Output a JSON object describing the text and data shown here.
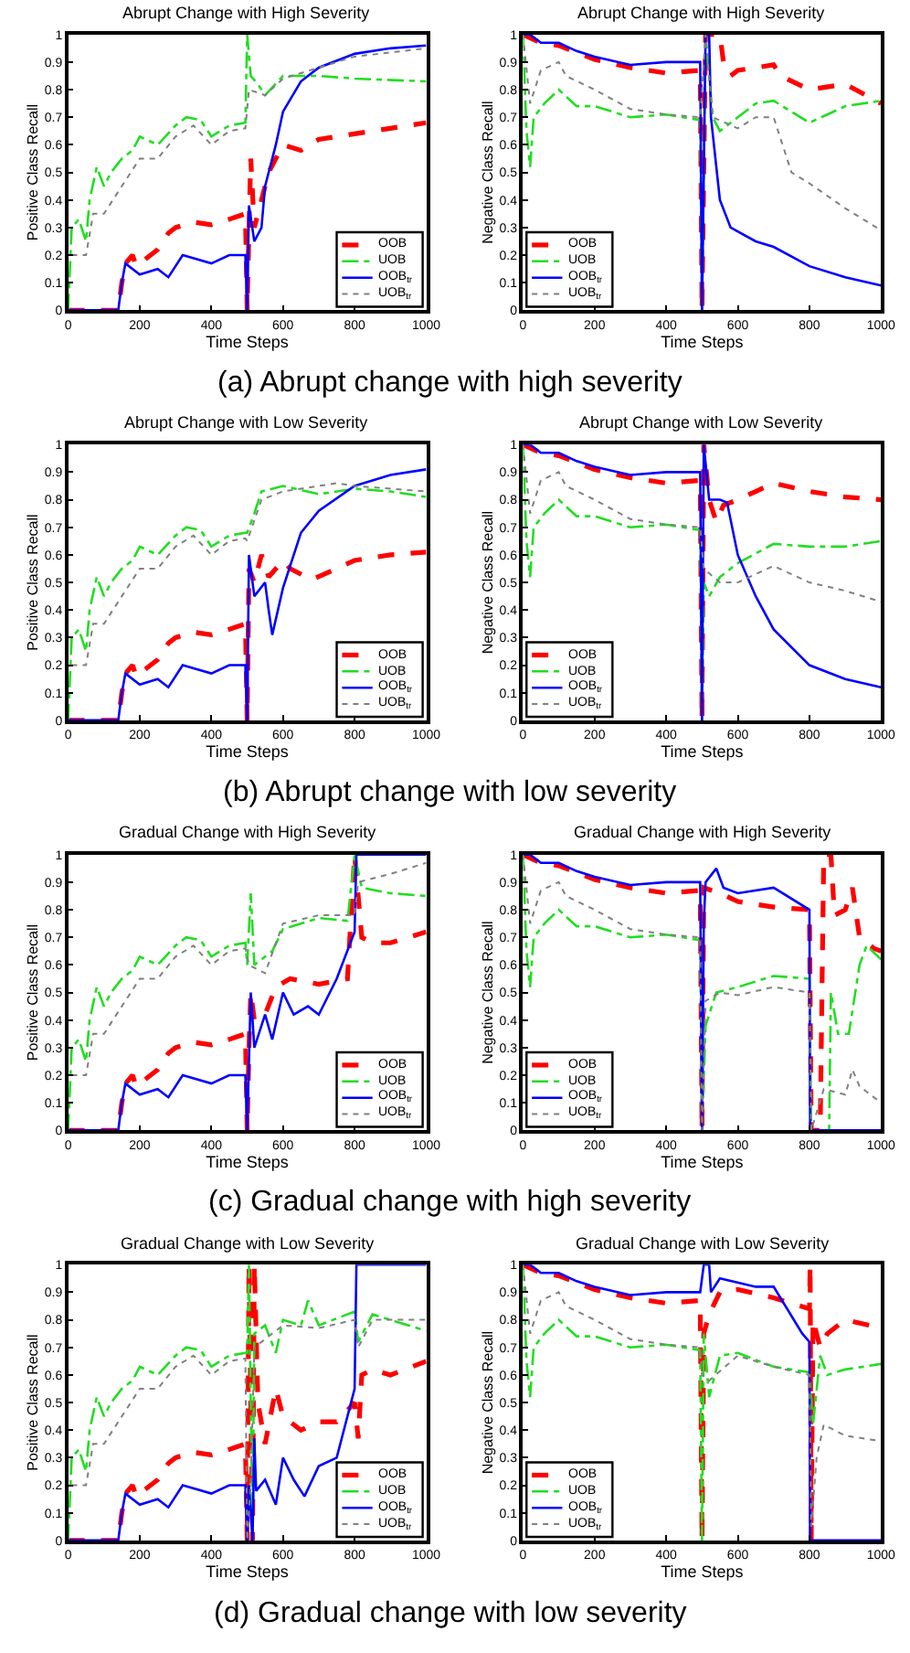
{
  "chart_data": [
    {
      "type": "line",
      "title": "Abrupt Change with High Severity",
      "xlabel": "Time Steps",
      "ylabel": "Positive Class Recall",
      "xlim": [
        0,
        1000
      ],
      "ylim": [
        0,
        1
      ],
      "xticks": [
        0,
        200,
        400,
        600,
        800,
        1000
      ],
      "yticks": [
        0,
        0.1,
        0.2,
        0.3,
        0.4,
        0.5,
        0.6,
        0.7,
        0.8,
        0.9,
        1
      ],
      "grid": false,
      "legend": "bottom right",
      "annotations": [
        "(a) Abrupt change with high severity"
      ],
      "series": [
        {
          "name": "OOB",
          "color": "#ff0000",
          "line_style": "dashed",
          "x": [
            0,
            140,
            150,
            160,
            180,
            190,
            200,
            250,
            280,
            300,
            350,
            400,
            450,
            495,
            500,
            505,
            510,
            520,
            540,
            560,
            600,
            650,
            700,
            800,
            900,
            1000
          ],
          "values": [
            0,
            0,
            0.1,
            0.17,
            0.2,
            0.16,
            0.17,
            0.22,
            0.28,
            0.3,
            0.32,
            0.31,
            0.33,
            0.35,
            0,
            0.3,
            0.55,
            0.3,
            0.4,
            0.5,
            0.6,
            0.58,
            0.62,
            0.64,
            0.66,
            0.68
          ]
        },
        {
          "name": "UOB",
          "color": "#22dd22",
          "line_style": "dashdot",
          "x": [
            0,
            10,
            30,
            50,
            60,
            80,
            100,
            120,
            150,
            180,
            200,
            250,
            300,
            330,
            370,
            400,
            450,
            495,
            500,
            510,
            530,
            550,
            600,
            700,
            800,
            1000
          ],
          "values": [
            0,
            0.3,
            0.33,
            0.25,
            0.4,
            0.52,
            0.45,
            0.5,
            0.55,
            0.58,
            0.63,
            0.6,
            0.67,
            0.7,
            0.69,
            0.63,
            0.67,
            0.68,
            1,
            0.85,
            0.82,
            0.78,
            0.85,
            0.85,
            0.84,
            0.83
          ]
        },
        {
          "name": "OOB$_{tr}$",
          "color": "#0000ff",
          "line_style": "solid",
          "x": [
            0,
            140,
            150,
            160,
            200,
            250,
            280,
            320,
            400,
            450,
            495,
            500,
            505,
            520,
            540,
            550,
            580,
            600,
            650,
            700,
            800,
            900,
            1000
          ],
          "values": [
            0,
            0,
            0.1,
            0.17,
            0.13,
            0.15,
            0.12,
            0.2,
            0.17,
            0.2,
            0.2,
            0,
            0.38,
            0.25,
            0.3,
            0.45,
            0.6,
            0.72,
            0.83,
            0.88,
            0.93,
            0.95,
            0.96
          ]
        },
        {
          "name": "UOB$_{tr}$",
          "color": "#808080",
          "line_style": "dotted",
          "x": [
            10,
            50,
            70,
            100,
            150,
            200,
            250,
            300,
            350,
            400,
            450,
            495,
            505,
            550,
            600,
            700,
            800,
            1000
          ],
          "values": [
            0.2,
            0.2,
            0.35,
            0.35,
            0.45,
            0.55,
            0.55,
            0.63,
            0.67,
            0.6,
            0.65,
            0.66,
            0.8,
            0.78,
            0.84,
            0.88,
            0.92,
            0.95
          ]
        }
      ]
    },
    {
      "type": "line",
      "title": "Abrupt Change with High Severity",
      "xlabel": "Time Steps",
      "ylabel": "Negative Class Recall",
      "xlim": [
        0,
        1000
      ],
      "ylim": [
        0,
        1
      ],
      "xticks": [
        0,
        200,
        400,
        600,
        800,
        1000
      ],
      "yticks": [
        0,
        0.1,
        0.2,
        0.3,
        0.4,
        0.5,
        0.6,
        0.7,
        0.8,
        0.9,
        1
      ],
      "grid": false,
      "legend": "bottom left",
      "series": [
        {
          "name": "OOB",
          "color": "#ff0000",
          "line_style": "dashed",
          "x": [
            0,
            50,
            100,
            200,
            300,
            400,
            495,
            500,
            510,
            550,
            560,
            580,
            600,
            700,
            720,
            800,
            900,
            1000
          ],
          "values": [
            1,
            0.97,
            0.96,
            0.91,
            0.88,
            0.86,
            0.87,
            0,
            1,
            1,
            0.9,
            0.85,
            0.87,
            0.89,
            0.85,
            0.8,
            0.82,
            0.75
          ]
        },
        {
          "name": "UOB",
          "color": "#22dd22",
          "line_style": "dashdot",
          "x": [
            0,
            10,
            20,
            30,
            60,
            100,
            150,
            200,
            300,
            400,
            495,
            500,
            510,
            530,
            550,
            600,
            650,
            700,
            800,
            900,
            1000
          ],
          "values": [
            1,
            0.65,
            0.52,
            0.7,
            0.75,
            0.8,
            0.74,
            0.74,
            0.7,
            0.71,
            0.69,
            0,
            1,
            0.7,
            0.65,
            0.7,
            0.75,
            0.76,
            0.68,
            0.74,
            0.76
          ]
        },
        {
          "name": "OOB$_{tr}$",
          "color": "#0000ff",
          "line_style": "solid",
          "x": [
            0,
            20,
            50,
            100,
            150,
            200,
            300,
            400,
            495,
            500,
            510,
            520,
            525,
            550,
            580,
            650,
            700,
            800,
            900,
            1000
          ],
          "values": [
            1,
            1,
            0.97,
            0.97,
            0.94,
            0.92,
            0.89,
            0.9,
            0.9,
            0,
            1,
            1,
            0.7,
            0.4,
            0.3,
            0.25,
            0.23,
            0.16,
            0.12,
            0.09
          ]
        },
        {
          "name": "UOB$_{tr}$",
          "color": "#808080",
          "line_style": "dotted",
          "x": [
            0,
            20,
            50,
            100,
            120,
            200,
            300,
            400,
            495,
            510,
            530,
            600,
            650,
            700,
            750,
            800,
            900,
            1000
          ],
          "values": [
            1,
            0.75,
            0.87,
            0.9,
            0.85,
            0.8,
            0.73,
            0.71,
            0.7,
            1,
            0.7,
            0.66,
            0.7,
            0.7,
            0.5,
            0.46,
            0.37,
            0.29
          ]
        }
      ]
    },
    {
      "type": "line",
      "title": "Abrupt Change with Low Severity",
      "xlabel": "Time Steps",
      "ylabel": "Positive Class Recall",
      "xlim": [
        0,
        1000
      ],
      "ylim": [
        0,
        1
      ],
      "xticks": [
        0,
        200,
        400,
        600,
        800,
        1000
      ],
      "yticks": [
        0,
        0.1,
        0.2,
        0.3,
        0.4,
        0.5,
        0.6,
        0.7,
        0.8,
        0.9,
        1
      ],
      "grid": false,
      "legend": "bottom right",
      "annotations": [
        "(b) Abrupt change with low severity"
      ],
      "series": [
        {
          "name": "OOB",
          "color": "#ff0000",
          "line_style": "dashed",
          "x": [
            0,
            140,
            150,
            160,
            180,
            190,
            200,
            250,
            280,
            300,
            350,
            400,
            450,
            495,
            500,
            505,
            520,
            540,
            560,
            600,
            620,
            680,
            750,
            800,
            900,
            1000
          ],
          "values": [
            0,
            0,
            0.1,
            0.17,
            0.2,
            0.16,
            0.17,
            0.22,
            0.28,
            0.3,
            0.32,
            0.31,
            0.33,
            0.35,
            0,
            0.55,
            0.5,
            0.6,
            0.52,
            0.58,
            0.55,
            0.51,
            0.55,
            0.58,
            0.6,
            0.61
          ]
        },
        {
          "name": "UOB",
          "color": "#22dd22",
          "line_style": "dashdot",
          "x": [
            0,
            10,
            30,
            50,
            60,
            80,
            100,
            120,
            150,
            180,
            200,
            250,
            300,
            330,
            370,
            400,
            450,
            495,
            500,
            520,
            540,
            600,
            700,
            800,
            900,
            1000
          ],
          "values": [
            0,
            0.3,
            0.33,
            0.25,
            0.4,
            0.52,
            0.45,
            0.5,
            0.55,
            0.58,
            0.63,
            0.6,
            0.67,
            0.7,
            0.69,
            0.63,
            0.67,
            0.68,
            0.68,
            0.75,
            0.83,
            0.85,
            0.82,
            0.84,
            0.83,
            0.81
          ]
        },
        {
          "name": "OOB$_{tr}$",
          "color": "#0000ff",
          "line_style": "solid",
          "x": [
            0,
            140,
            150,
            160,
            200,
            250,
            280,
            320,
            400,
            450,
            495,
            500,
            505,
            520,
            550,
            560,
            570,
            600,
            650,
            700,
            800,
            900,
            1000
          ],
          "values": [
            0,
            0,
            0.1,
            0.17,
            0.13,
            0.15,
            0.12,
            0.2,
            0.17,
            0.2,
            0.2,
            0,
            0.6,
            0.45,
            0.5,
            0.4,
            0.31,
            0.48,
            0.68,
            0.76,
            0.85,
            0.89,
            0.91
          ]
        },
        {
          "name": "UOB$_{tr}$",
          "color": "#808080",
          "line_style": "dotted",
          "x": [
            10,
            50,
            70,
            100,
            150,
            200,
            250,
            300,
            350,
            400,
            450,
            495,
            500,
            540,
            600,
            750,
            800,
            1000
          ],
          "values": [
            0.2,
            0.2,
            0.35,
            0.35,
            0.45,
            0.55,
            0.55,
            0.63,
            0.67,
            0.6,
            0.65,
            0.66,
            0.65,
            0.8,
            0.83,
            0.86,
            0.85,
            0.83
          ]
        }
      ]
    },
    {
      "type": "line",
      "title": "Abrupt Change with Low Severity",
      "xlabel": "Time Steps",
      "ylabel": "Negative Class Recall",
      "xlim": [
        0,
        1000
      ],
      "ylim": [
        0,
        1
      ],
      "xticks": [
        0,
        200,
        400,
        600,
        800,
        1000
      ],
      "yticks": [
        0,
        0.1,
        0.2,
        0.3,
        0.4,
        0.5,
        0.6,
        0.7,
        0.8,
        0.9,
        1
      ],
      "grid": false,
      "legend": "bottom left",
      "series": [
        {
          "name": "OOB",
          "color": "#ff0000",
          "line_style": "dashed",
          "x": [
            0,
            50,
            100,
            200,
            300,
            400,
            495,
            500,
            505,
            520,
            540,
            560,
            600,
            650,
            700,
            800,
            900,
            1000
          ],
          "values": [
            1,
            0.97,
            0.96,
            0.91,
            0.88,
            0.86,
            0.87,
            0,
            1,
            0.8,
            0.72,
            0.78,
            0.8,
            0.83,
            0.86,
            0.83,
            0.81,
            0.8
          ]
        },
        {
          "name": "UOB",
          "color": "#22dd22",
          "line_style": "dashdot",
          "x": [
            0,
            10,
            20,
            30,
            60,
            100,
            150,
            200,
            300,
            400,
            495,
            500,
            505,
            520,
            550,
            600,
            700,
            800,
            900,
            1000
          ],
          "values": [
            1,
            0.65,
            0.52,
            0.7,
            0.75,
            0.8,
            0.74,
            0.74,
            0.7,
            0.71,
            0.69,
            0,
            0.5,
            0.45,
            0.52,
            0.57,
            0.64,
            0.63,
            0.63,
            0.65
          ]
        },
        {
          "name": "OOB$_{tr}$",
          "color": "#0000ff",
          "line_style": "solid",
          "x": [
            0,
            20,
            50,
            100,
            150,
            200,
            300,
            400,
            495,
            500,
            505,
            520,
            550,
            570,
            600,
            650,
            700,
            800,
            900,
            1000
          ],
          "values": [
            1,
            1,
            0.97,
            0.97,
            0.94,
            0.92,
            0.89,
            0.9,
            0.9,
            0,
            1,
            0.8,
            0.8,
            0.79,
            0.6,
            0.45,
            0.33,
            0.2,
            0.15,
            0.12
          ]
        },
        {
          "name": "UOB$_{tr}$",
          "color": "#808080",
          "line_style": "dotted",
          "x": [
            0,
            20,
            50,
            100,
            120,
            200,
            300,
            400,
            495,
            505,
            550,
            600,
            700,
            800,
            900,
            1000
          ],
          "values": [
            1,
            0.75,
            0.87,
            0.9,
            0.85,
            0.8,
            0.73,
            0.71,
            0.7,
            0.55,
            0.5,
            0.5,
            0.56,
            0.5,
            0.47,
            0.43
          ]
        }
      ]
    },
    {
      "type": "line",
      "title": "Gradual Change with High Severity",
      "xlabel": "Time Steps",
      "ylabel": "Positive Class Recall",
      "xlim": [
        0,
        1000
      ],
      "ylim": [
        0,
        1
      ],
      "xticks": [
        0,
        200,
        400,
        600,
        800,
        1000
      ],
      "yticks": [
        0,
        0.1,
        0.2,
        0.3,
        0.4,
        0.5,
        0.6,
        0.7,
        0.8,
        0.9,
        1
      ],
      "grid": false,
      "legend": "bottom right",
      "annotations": [
        "(c) Gradual change with high severity"
      ],
      "series": [
        {
          "name": "OOB",
          "color": "#ff0000",
          "line_style": "dashed",
          "x": [
            0,
            140,
            150,
            160,
            180,
            190,
            200,
            250,
            280,
            300,
            350,
            400,
            450,
            495,
            500,
            505,
            510,
            520,
            550,
            580,
            620,
            700,
            780,
            800,
            820,
            850,
            900,
            1000
          ],
          "values": [
            0,
            0,
            0.1,
            0.17,
            0.2,
            0.16,
            0.17,
            0.22,
            0.28,
            0.3,
            0.32,
            0.31,
            0.33,
            0.35,
            0,
            0.3,
            0.5,
            0.4,
            0.42,
            0.52,
            0.55,
            0.53,
            0.55,
            1,
            0.7,
            0.68,
            0.68,
            0.72
          ]
        },
        {
          "name": "UOB",
          "color": "#22dd22",
          "line_style": "dashdot",
          "x": [
            0,
            10,
            30,
            50,
            60,
            80,
            100,
            120,
            150,
            180,
            200,
            250,
            300,
            330,
            370,
            400,
            450,
            495,
            500,
            510,
            520,
            570,
            600,
            700,
            780,
            800,
            820,
            900,
            1000
          ],
          "values": [
            0,
            0.3,
            0.33,
            0.25,
            0.4,
            0.52,
            0.45,
            0.5,
            0.55,
            0.58,
            0.63,
            0.6,
            0.67,
            0.7,
            0.69,
            0.63,
            0.67,
            0.68,
            0.6,
            0.86,
            0.6,
            0.65,
            0.73,
            0.77,
            0.76,
            1,
            0.88,
            0.86,
            0.85
          ]
        },
        {
          "name": "OOB$_{tr}$",
          "color": "#0000ff",
          "line_style": "solid",
          "x": [
            0,
            140,
            150,
            160,
            200,
            250,
            280,
            320,
            400,
            450,
            495,
            500,
            510,
            520,
            550,
            570,
            600,
            630,
            670,
            700,
            750,
            800,
            805,
            1000
          ],
          "values": [
            0,
            0,
            0.1,
            0.17,
            0.13,
            0.15,
            0.12,
            0.2,
            0.17,
            0.2,
            0.2,
            0,
            0.5,
            0.3,
            0.42,
            0.33,
            0.5,
            0.42,
            0.45,
            0.42,
            0.55,
            0.72,
            1,
            1
          ]
        },
        {
          "name": "UOB$_{tr}$",
          "color": "#808080",
          "line_style": "dotted",
          "x": [
            10,
            50,
            70,
            100,
            150,
            200,
            250,
            300,
            350,
            400,
            450,
            495,
            505,
            550,
            600,
            700,
            800,
            810,
            900,
            1000
          ],
          "values": [
            0.2,
            0.2,
            0.35,
            0.35,
            0.45,
            0.55,
            0.55,
            0.63,
            0.67,
            0.6,
            0.65,
            0.66,
            0.6,
            0.57,
            0.75,
            0.78,
            0.78,
            0.9,
            0.93,
            0.97
          ]
        }
      ]
    },
    {
      "type": "line",
      "title": "Gradual Change with High Severity",
      "xlabel": "Time Steps",
      "ylabel": "Negative Class Recall",
      "xlim": [
        0,
        1000
      ],
      "ylim": [
        0,
        1
      ],
      "xticks": [
        0,
        200,
        400,
        600,
        800,
        1000
      ],
      "yticks": [
        0,
        0.1,
        0.2,
        0.3,
        0.4,
        0.5,
        0.6,
        0.7,
        0.8,
        0.9,
        1
      ],
      "grid": false,
      "legend": "bottom left",
      "series": [
        {
          "name": "OOB",
          "color": "#ff0000",
          "line_style": "dashed",
          "x": [
            0,
            50,
            100,
            200,
            300,
            400,
            495,
            500,
            505,
            550,
            600,
            700,
            800,
            805,
            830,
            840,
            860,
            870,
            900,
            920,
            940,
            960,
            980,
            1000
          ],
          "values": [
            1,
            0.97,
            0.96,
            0.91,
            0.88,
            0.86,
            0.87,
            0,
            0.88,
            0.86,
            0.83,
            0.81,
            0.8,
            0,
            0,
            1,
            1,
            0.78,
            0.8,
            0.88,
            0.7,
            0.68,
            0.66,
            0.65
          ]
        },
        {
          "name": "UOB",
          "color": "#22dd22",
          "line_style": "dashdot",
          "x": [
            0,
            10,
            20,
            30,
            60,
            100,
            150,
            200,
            300,
            400,
            495,
            500,
            510,
            540,
            600,
            700,
            800,
            805,
            855,
            860,
            880,
            910,
            940,
            960,
            1000
          ],
          "values": [
            1,
            0.65,
            0.52,
            0.7,
            0.75,
            0.8,
            0.74,
            0.74,
            0.7,
            0.71,
            0.69,
            0,
            0.38,
            0.5,
            0.52,
            0.56,
            0.55,
            0,
            0,
            0.5,
            0.35,
            0.35,
            0.6,
            0.67,
            0.62
          ]
        },
        {
          "name": "OOB$_{tr}$",
          "color": "#0000ff",
          "line_style": "solid",
          "x": [
            0,
            20,
            50,
            100,
            150,
            200,
            300,
            400,
            495,
            500,
            505,
            510,
            540,
            560,
            600,
            700,
            800,
            802,
            1000
          ],
          "values": [
            1,
            1,
            0.97,
            0.97,
            0.94,
            0.92,
            0.89,
            0.9,
            0.9,
            0,
            0.75,
            0.9,
            0.95,
            0.88,
            0.86,
            0.88,
            0.8,
            0,
            0
          ]
        },
        {
          "name": "UOB$_{tr}$",
          "color": "#808080",
          "line_style": "dotted",
          "x": [
            0,
            20,
            50,
            100,
            120,
            200,
            300,
            400,
            495,
            500,
            510,
            550,
            600,
            700,
            800,
            805,
            840,
            900,
            920,
            940,
            1000
          ],
          "values": [
            1,
            0.75,
            0.87,
            0.9,
            0.85,
            0.8,
            0.73,
            0.71,
            0.7,
            0,
            0.47,
            0.5,
            0.49,
            0.52,
            0.5,
            0,
            0.15,
            0.13,
            0.22,
            0.16,
            0.1
          ]
        }
      ]
    },
    {
      "type": "line",
      "title": "Gradual Change with Low Severity",
      "xlabel": "Time Steps",
      "ylabel": "Positive Class Recall",
      "xlim": [
        0,
        1000
      ],
      "ylim": [
        0,
        1
      ],
      "xticks": [
        0,
        200,
        400,
        600,
        800,
        1000
      ],
      "yticks": [
        0,
        0.1,
        0.2,
        0.3,
        0.4,
        0.5,
        0.6,
        0.7,
        0.8,
        0.9,
        1
      ],
      "grid": false,
      "legend": "bottom right",
      "annotations": [
        "(d) Gradual change with low severity"
      ],
      "series": [
        {
          "name": "OOB",
          "color": "#ff0000",
          "line_style": "dashed",
          "x": [
            0,
            140,
            150,
            160,
            180,
            190,
            200,
            250,
            280,
            300,
            350,
            400,
            450,
            495,
            500,
            505,
            515,
            520,
            530,
            550,
            580,
            600,
            650,
            700,
            750,
            800,
            810,
            820,
            850,
            900,
            1000
          ],
          "values": [
            0,
            0,
            0.1,
            0.17,
            0.2,
            0.16,
            0.17,
            0.22,
            0.28,
            0.3,
            0.32,
            0.31,
            0.33,
            0.35,
            0,
            1,
            0,
            1,
            0.5,
            0.35,
            0.55,
            0.45,
            0.4,
            0.43,
            0.43,
            0.5,
            0.37,
            0.6,
            0.62,
            0.6,
            0.65
          ]
        },
        {
          "name": "UOB",
          "color": "#22dd22",
          "line_style": "dashdot",
          "x": [
            0,
            10,
            30,
            50,
            60,
            80,
            100,
            120,
            150,
            180,
            200,
            250,
            300,
            330,
            370,
            400,
            450,
            495,
            500,
            505,
            515,
            520,
            550,
            580,
            600,
            650,
            670,
            700,
            800,
            810,
            850,
            1000
          ],
          "values": [
            0,
            0.3,
            0.33,
            0.25,
            0.4,
            0.52,
            0.45,
            0.5,
            0.55,
            0.58,
            0.63,
            0.6,
            0.67,
            0.7,
            0.69,
            0.63,
            0.67,
            0.68,
            0.68,
            1,
            0,
            0.75,
            0.78,
            0.68,
            0.8,
            0.78,
            0.87,
            0.78,
            0.83,
            0.72,
            0.82,
            0.76
          ]
        },
        {
          "name": "OOB$_{tr}$",
          "color": "#0000ff",
          "line_style": "solid",
          "x": [
            0,
            140,
            150,
            160,
            200,
            250,
            280,
            320,
            400,
            450,
            495,
            500,
            505,
            515,
            520,
            525,
            550,
            580,
            600,
            630,
            660,
            700,
            750,
            800,
            805,
            1000
          ],
          "values": [
            0,
            0,
            0.1,
            0.17,
            0.13,
            0.15,
            0.12,
            0.2,
            0.17,
            0.2,
            0.2,
            0,
            0.2,
            0,
            0.37,
            0.18,
            0.22,
            0.13,
            0.3,
            0.22,
            0.16,
            0.27,
            0.3,
            0.55,
            1,
            1
          ]
        },
        {
          "name": "UOB$_{tr}$",
          "color": "#808080",
          "line_style": "dotted",
          "x": [
            10,
            50,
            70,
            100,
            150,
            200,
            250,
            300,
            350,
            400,
            450,
            495,
            500,
            510,
            520,
            600,
            700,
            800,
            810,
            850,
            1000
          ],
          "values": [
            0.2,
            0.2,
            0.35,
            0.35,
            0.45,
            0.55,
            0.55,
            0.63,
            0.67,
            0.6,
            0.65,
            0.66,
            0,
            0.2,
            0.7,
            0.78,
            0.77,
            0.8,
            0.7,
            0.8,
            0.8
          ]
        }
      ]
    },
    {
      "type": "line",
      "title": "Gradual Change with Low Severity",
      "xlabel": "Time Steps",
      "ylabel": "Negative Class Recall",
      "xlim": [
        0,
        1000
      ],
      "ylim": [
        0,
        1
      ],
      "xticks": [
        0,
        200,
        400,
        600,
        800,
        1000
      ],
      "yticks": [
        0,
        0.1,
        0.2,
        0.3,
        0.4,
        0.5,
        0.6,
        0.7,
        0.8,
        0.9,
        1
      ],
      "grid": false,
      "legend": "bottom left",
      "series": [
        {
          "name": "OOB",
          "color": "#ff0000",
          "line_style": "dashed",
          "x": [
            0,
            50,
            100,
            200,
            300,
            400,
            495,
            500,
            505,
            520,
            550,
            600,
            700,
            800,
            802,
            805,
            810,
            830,
            850,
            900,
            1000
          ],
          "values": [
            1,
            0.97,
            0.96,
            0.91,
            0.88,
            0.86,
            0.87,
            0,
            0.75,
            0.82,
            0.9,
            0.91,
            0.88,
            0.84,
            1,
            0,
            0.8,
            0.7,
            0.75,
            0.8,
            0.77
          ]
        },
        {
          "name": "UOB",
          "color": "#22dd22",
          "line_style": "dashdot",
          "x": [
            0,
            10,
            20,
            30,
            60,
            100,
            150,
            200,
            300,
            400,
            495,
            500,
            505,
            520,
            550,
            600,
            700,
            800,
            810,
            830,
            850,
            900,
            1000
          ],
          "values": [
            1,
            0.65,
            0.52,
            0.7,
            0.75,
            0.8,
            0.74,
            0.74,
            0.7,
            0.71,
            0.69,
            0,
            0.75,
            0.52,
            0.67,
            0.68,
            0.63,
            0.61,
            0.42,
            0.67,
            0.6,
            0.62,
            0.64
          ]
        },
        {
          "name": "OOB$_{tr}$",
          "color": "#0000ff",
          "line_style": "solid",
          "x": [
            0,
            20,
            50,
            100,
            150,
            200,
            300,
            400,
            495,
            505,
            520,
            525,
            550,
            650,
            700,
            780,
            800,
            802,
            1000
          ],
          "values": [
            1,
            1,
            0.97,
            0.97,
            0.94,
            0.92,
            0.89,
            0.9,
            0.9,
            1,
            1,
            0.9,
            0.95,
            0.92,
            0.92,
            0.75,
            0.72,
            0,
            0
          ]
        },
        {
          "name": "UOB$_{tr}$",
          "color": "#808080",
          "line_style": "dotted",
          "x": [
            0,
            20,
            50,
            100,
            120,
            200,
            300,
            400,
            495,
            500,
            520,
            600,
            700,
            800,
            805,
            820,
            840,
            900,
            1000
          ],
          "values": [
            1,
            0.75,
            0.87,
            0.9,
            0.85,
            0.8,
            0.73,
            0.71,
            0.7,
            0.6,
            0.58,
            0.67,
            0.63,
            0.6,
            0.05,
            0.3,
            0.42,
            0.38,
            0.36
          ]
        }
      ]
    }
  ]
}
